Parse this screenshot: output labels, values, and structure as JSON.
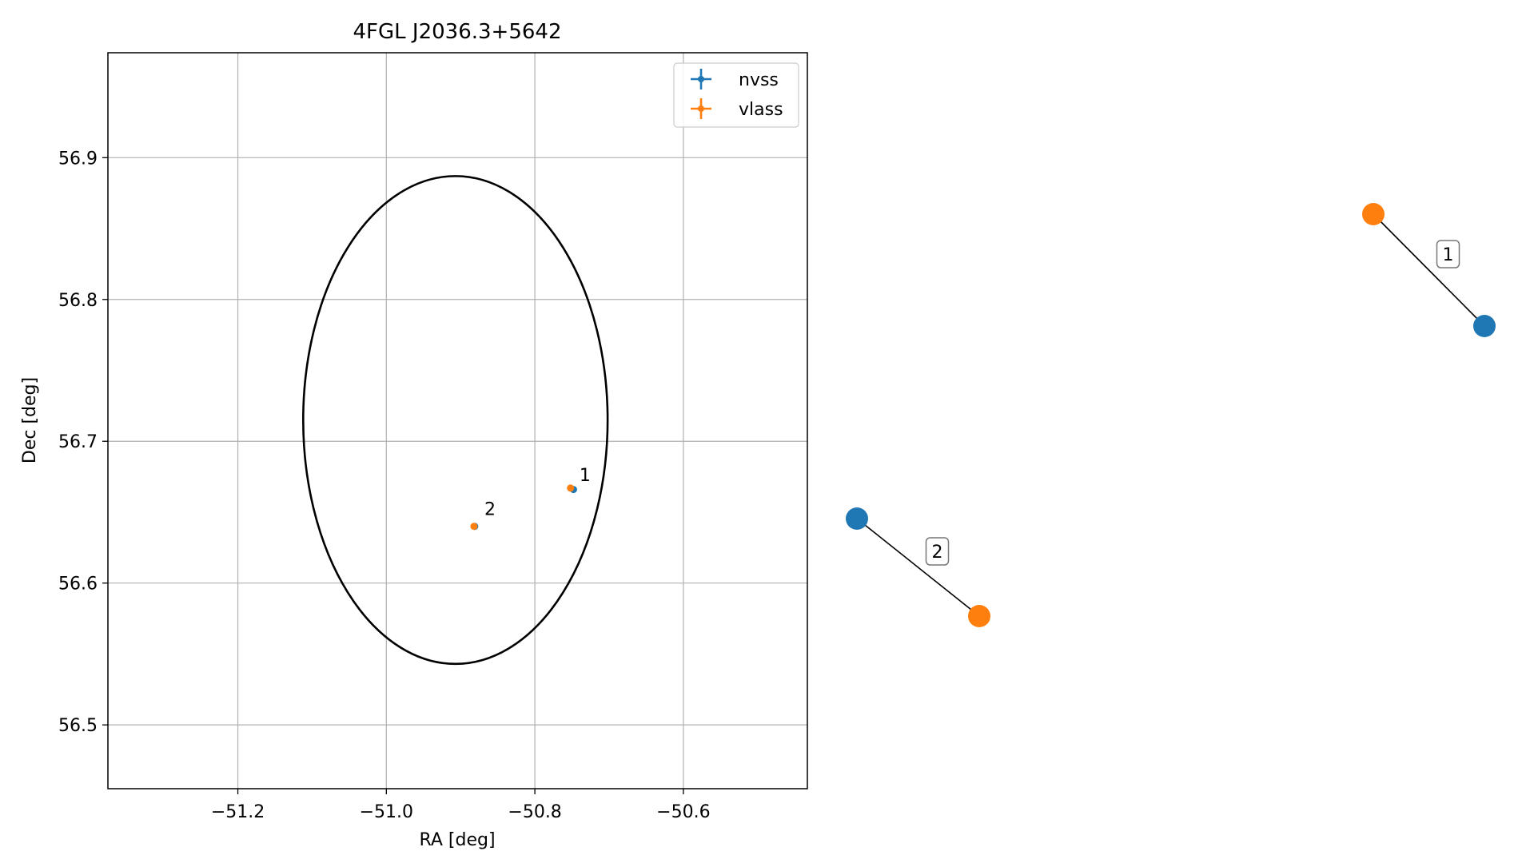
{
  "chart_data": [
    {
      "type": "scatter",
      "title": "4FGL J2036.3+5642",
      "xlabel": "RA [deg]",
      "ylabel": "Dec [deg]",
      "xlim": [
        -51.375,
        -50.433
      ],
      "ylim": [
        56.455,
        56.974
      ],
      "xticks": [
        -51.2,
        -51.0,
        -50.8,
        -50.6
      ],
      "xtick_labels": [
        "−51.2",
        "−51.0",
        "−50.8",
        "−50.6"
      ],
      "yticks": [
        56.5,
        56.6,
        56.7,
        56.8,
        56.9
      ],
      "ytick_labels": [
        "56.5",
        "56.6",
        "56.7",
        "56.8",
        "56.9"
      ],
      "grid": true,
      "legend": {
        "position": "top-right",
        "entries": [
          "nvss",
          "vlass"
        ]
      },
      "colors": {
        "nvss": "#1f77b4",
        "vlass": "#ff7f0e",
        "ellipse": "#000000",
        "grid": "#b0b0b0"
      },
      "series": [
        {
          "name": "nvss",
          "points": [
            {
              "x": -50.748,
              "y": 56.666
            },
            {
              "x": -50.881,
              "y": 56.64
            }
          ]
        },
        {
          "name": "vlass",
          "points": [
            {
              "x": -50.752,
              "y": 56.667
            },
            {
              "x": -50.882,
              "y": 56.64
            }
          ]
        }
      ],
      "annotations": [
        {
          "text": "1",
          "x": -50.74,
          "y": 56.672
        },
        {
          "text": "2",
          "x": -50.868,
          "y": 56.648
        }
      ],
      "ellipse": {
        "center": [
          -50.907,
          56.715
        ],
        "ra_radius": 0.205,
        "dec_radius": 0.172
      }
    },
    {
      "type": "network",
      "nodes": [
        {
          "id": "n1",
          "group": "nvss"
        },
        {
          "id": "v1",
          "group": "vlass"
        },
        {
          "id": "n2",
          "group": "nvss"
        },
        {
          "id": "v2",
          "group": "vlass"
        }
      ],
      "edges": [
        {
          "source": "v1",
          "target": "n1",
          "label": "1"
        },
        {
          "source": "n2",
          "target": "v2",
          "label": "2"
        }
      ]
    }
  ]
}
